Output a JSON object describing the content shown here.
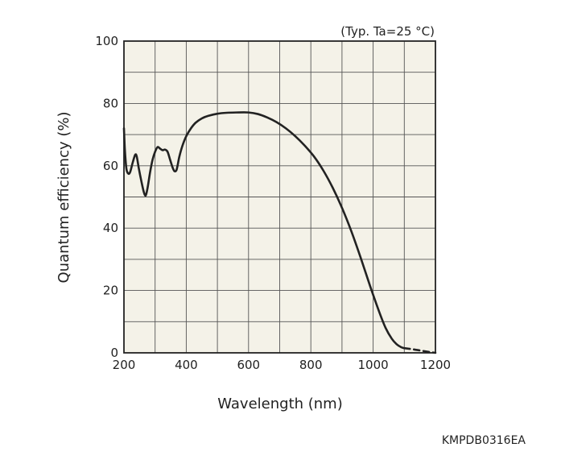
{
  "chart_data": {
    "type": "line",
    "title": "",
    "annotation": "(Typ. Ta=25 °C)",
    "xlabel": "Wavelength (nm)",
    "ylabel": "Quantum efficiency (%)",
    "xlim": [
      200,
      1200
    ],
    "ylim": [
      0,
      100
    ],
    "xticks": [
      200,
      400,
      600,
      800,
      1000,
      1200
    ],
    "yticks": [
      0,
      20,
      40,
      60,
      80,
      100
    ],
    "x_grid_step": 100,
    "y_grid_step": 10,
    "grid": true,
    "plot_background": "#f4f2e8",
    "line_color": "#222222",
    "series": [
      {
        "style": "solid",
        "x": [
          200,
          203,
          208,
          214,
          220,
          228,
          236,
          241,
          248,
          256,
          264,
          270,
          276,
          284,
          292,
          300,
          308,
          316,
          324,
          332,
          340,
          348,
          356,
          362,
          368,
          372,
          378,
          388,
          400,
          415,
          430,
          450,
          470,
          500,
          530,
          560,
          600,
          630,
          660,
          690,
          720,
          750,
          780,
          810,
          840,
          870,
          900,
          930,
          960,
          990,
          1020,
          1040,
          1060,
          1075,
          1090,
          1100
        ],
        "y": [
          72,
          65,
          59,
          57.5,
          58,
          61,
          63.5,
          63,
          59,
          55,
          51.5,
          50.5,
          53,
          58,
          62,
          64.5,
          66,
          65.5,
          65,
          65.2,
          64.5,
          62,
          59.5,
          58.3,
          58.5,
          60,
          63,
          66.5,
          69.5,
          72,
          73.8,
          75.2,
          76,
          76.7,
          77,
          77.1,
          77.1,
          76.6,
          75.5,
          74,
          72,
          69.5,
          66.5,
          63,
          58.5,
          53,
          46.5,
          39,
          30.5,
          21.5,
          13,
          8,
          4.5,
          2.8,
          1.8,
          1.5
        ]
      },
      {
        "style": "dashed",
        "x": [
          1100,
          1130,
          1160,
          1185,
          1200
        ],
        "y": [
          1.5,
          1.1,
          0.6,
          0.2,
          0
        ]
      }
    ]
  },
  "figure_code": "KMPDB0316EA"
}
